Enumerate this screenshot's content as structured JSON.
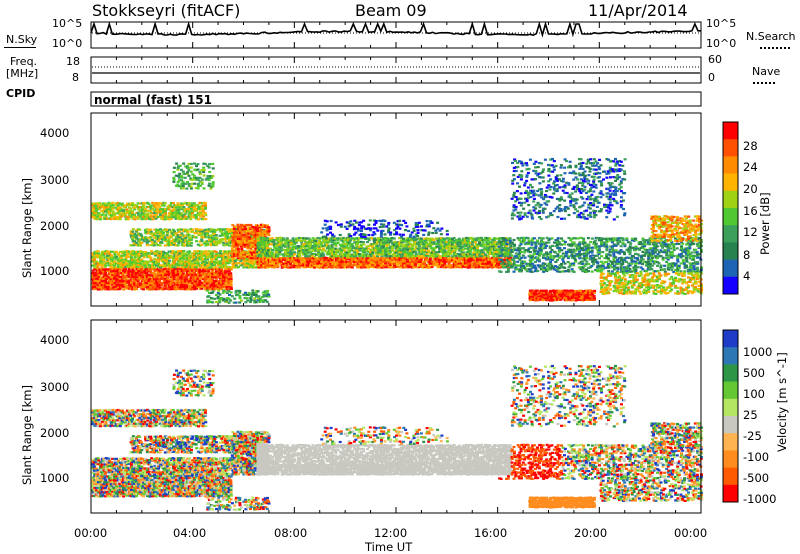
{
  "header": {
    "radar": "Stokkseyri (fitACF)",
    "beam": "Beam 09",
    "date": "11/Apr/2014"
  },
  "left_labels": {
    "nsky": "N.Sky",
    "freq": "Freq.",
    "freq_unit": "[MHz]",
    "cpid": "CPID"
  },
  "right_labels": {
    "nsearch": "N.Search",
    "nave": "Nave"
  },
  "cpid_text": "normal (fast) 151",
  "chart_data": [
    {
      "type": "line",
      "panel": "noise",
      "series": [
        {
          "name": "N.Sky"
        },
        {
          "name": "N.Search"
        }
      ],
      "y_ticks_left": [
        "10^5",
        "10^0"
      ],
      "y_ticks_right": [
        "10^5",
        "10^0"
      ],
      "x_range": [
        "00:00",
        "24:00"
      ]
    },
    {
      "type": "line",
      "panel": "frequency",
      "series": [
        {
          "name": "Freq."
        },
        {
          "name": "Nave"
        }
      ],
      "freq_y_ticks": [
        "18",
        "8"
      ],
      "nave_y_ticks": [
        "60",
        "0"
      ],
      "freq_approx_mhz": 10.5,
      "nave_approx": 24
    },
    {
      "type": "heatmap",
      "panel": "power",
      "ylabel": "Slant Range [km]",
      "y_ticks": [
        "1000",
        "2000",
        "3000",
        "4000"
      ],
      "ylim": [
        200,
        4600
      ],
      "colorbar_label": "Power [dB]",
      "colorbar_ticks": [
        "4",
        "8",
        "12",
        "16",
        "20",
        "24",
        "28"
      ],
      "colorbar_range": [
        0,
        32
      ],
      "colorbar_colors": [
        "#1400ff",
        "#1e64b4",
        "#288250",
        "#3ca05a",
        "#50c832",
        "#a0d214",
        "#ffb400",
        "#ff8c00",
        "#ff5000",
        "#ff0000"
      ]
    },
    {
      "type": "heatmap",
      "panel": "velocity",
      "ylabel": "Slant Range [km]",
      "y_ticks": [
        "1000",
        "2000",
        "3000",
        "4000"
      ],
      "ylim": [
        200,
        4600
      ],
      "colorbar_label": "Velocity [m s^-1]",
      "colorbar_ticks": [
        "1000",
        "500",
        "100",
        "25",
        "-25",
        "-100",
        "-500",
        "-1000"
      ],
      "colorbar_colors": [
        "#1e3cc8",
        "#2d78b4",
        "#2d9646",
        "#64c832",
        "#b4e664",
        "#c8c8c0",
        "#ffb450",
        "#ff8c1e",
        "#ff5a00",
        "#ff0000"
      ]
    }
  ],
  "x_axis": {
    "ticks": [
      "00:00",
      "04:00",
      "08:00",
      "12:00",
      "16:00",
      "20:00",
      "00:00"
    ],
    "label": "Time UT"
  }
}
